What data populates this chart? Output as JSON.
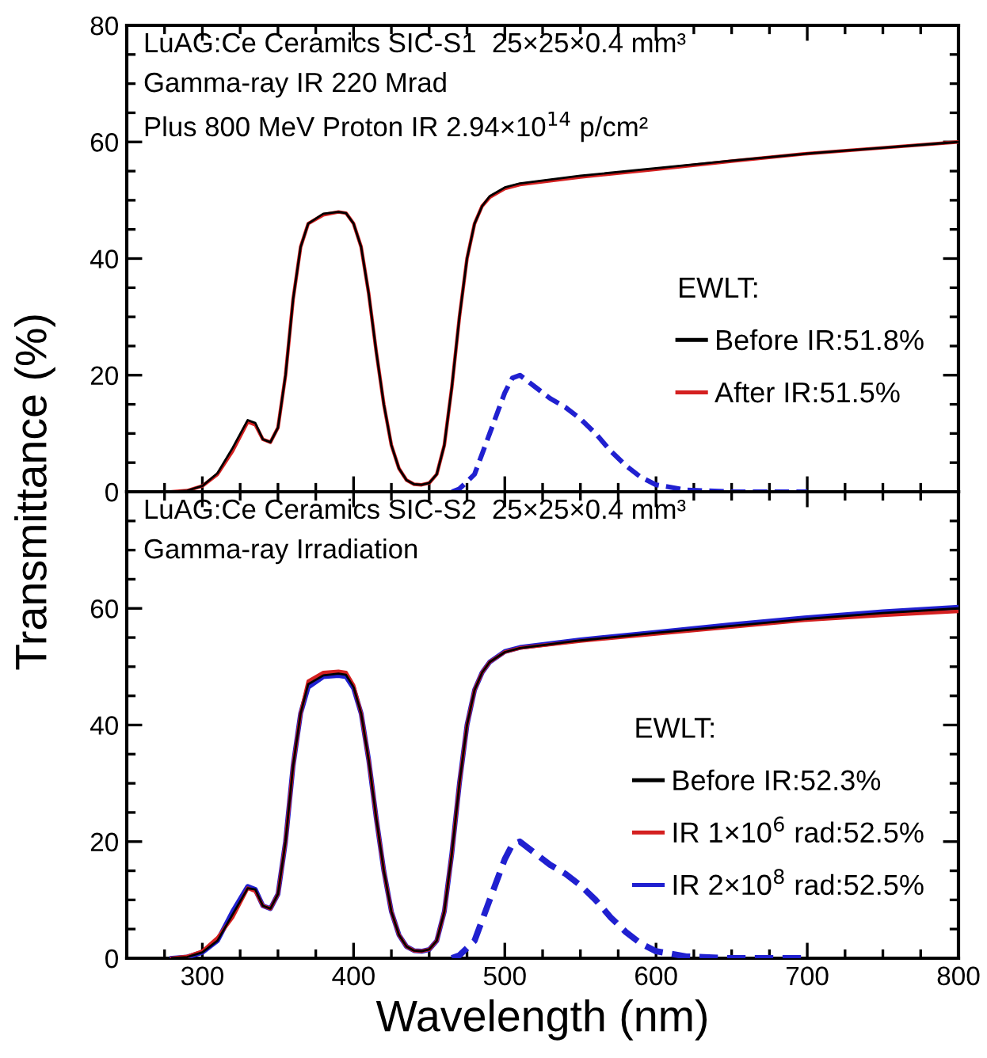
{
  "chart_data": [
    {
      "type": "line",
      "ylabel": "Transmittance (%)",
      "legend_title": "EWLT:",
      "legend": "right",
      "tick_labels": "y",
      "grid": false,
      "annotations": [
        "LuAG:Ce Ceramics SIC-S1  25×25×0.4 mm³",
        "Gamma-ray IR 220 Mrad",
        "Plus 800 MeV Proton IR 2.94×10$^{14}$ p/cm²"
      ],
      "x": [
        280,
        290,
        300,
        310,
        320,
        330,
        335,
        340,
        345,
        350,
        355,
        360,
        365,
        370,
        380,
        390,
        395,
        400,
        405,
        410,
        415,
        420,
        425,
        430,
        435,
        440,
        445,
        450,
        455,
        460,
        465,
        470,
        475,
        480,
        485,
        490,
        500,
        510,
        550,
        600,
        650,
        700,
        750,
        800
      ],
      "xlim": [
        250,
        800
      ],
      "xticks": [
        300,
        400,
        500,
        600,
        700,
        800
      ],
      "ylim": [
        0,
        80
      ],
      "yticks": [
        0,
        20,
        40,
        60,
        80
      ],
      "series": [
        {
          "name": "Before IR:51.8%",
          "color": "#000000",
          "values": [
            0,
            0.2,
            1,
            3.2,
            7.5,
            12.3,
            11.8,
            9,
            8.5,
            11,
            20,
            33,
            42,
            46,
            47.7,
            48,
            47.8,
            46,
            42,
            34,
            24,
            15,
            8,
            4,
            2,
            1.3,
            1.2,
            1.5,
            3,
            8,
            18,
            30,
            40,
            46,
            49,
            50.7,
            52.2,
            52.9,
            54.2,
            55.5,
            56.8,
            58,
            59,
            60
          ]
        },
        {
          "name": "After IR:51.5%",
          "color": "#d42020",
          "values": [
            0,
            0.2,
            1,
            3,
            7,
            12,
            11.5,
            9,
            8.5,
            11,
            20,
            33,
            42,
            46,
            47.5,
            48,
            47.8,
            46,
            42,
            34,
            24,
            15,
            8,
            4,
            2,
            1.3,
            1.2,
            1.5,
            3,
            8,
            18,
            30,
            40,
            46,
            49,
            50.5,
            52,
            52.7,
            54,
            55.3,
            56.7,
            58,
            59,
            60
          ]
        },
        {
          "color": "#2020d0",
          "line_style": "dashed",
          "x": [
            465,
            470,
            480,
            490,
            500,
            505,
            510,
            520,
            530,
            540,
            550,
            560,
            570,
            580,
            590,
            600,
            620,
            650,
            700
          ],
          "values": [
            0,
            0.5,
            3,
            10,
            17,
            19.5,
            20,
            18,
            16,
            14.5,
            12.5,
            10,
            7,
            4.5,
            2.5,
            1.2,
            0.3,
            0,
            0
          ]
        }
      ]
    },
    {
      "type": "line",
      "xlabel": "Wavelength (nm)",
      "legend_title": "EWLT:",
      "legend": "right",
      "grid": false,
      "annotations": [
        "LuAG:Ce Ceramics SIC-S2  25×25×0.4 mm³",
        "Gamma-ray Irradiation"
      ],
      "x": [
        280,
        290,
        300,
        310,
        320,
        330,
        335,
        340,
        345,
        350,
        355,
        360,
        365,
        370,
        380,
        390,
        395,
        400,
        405,
        410,
        415,
        420,
        425,
        430,
        435,
        440,
        445,
        450,
        455,
        460,
        465,
        470,
        475,
        480,
        485,
        490,
        500,
        510,
        550,
        600,
        650,
        700,
        750,
        800
      ],
      "xlim": [
        250,
        800
      ],
      "xticks": [
        300,
        400,
        500,
        600,
        700,
        800
      ],
      "ylim": [
        0,
        80
      ],
      "yticks": [
        0,
        20,
        40,
        60,
        {
          "value": 80,
          "label": null
        }
      ],
      "series": [
        {
          "name": "Before IR:52.3%",
          "color": "#000000",
          "values": [
            0,
            0.2,
            1,
            3,
            7.5,
            12,
            11.8,
            9,
            8.5,
            11,
            20,
            33,
            42,
            47,
            48.5,
            48.8,
            48.6,
            46.5,
            42,
            34,
            24,
            15,
            8,
            4,
            2,
            1.3,
            1.2,
            1.5,
            3,
            8,
            18,
            30,
            40,
            46,
            49,
            50.8,
            52.5,
            53.2,
            54.5,
            55.8,
            57,
            58.2,
            59.2,
            60
          ]
        },
        {
          "name": "IR 1×10$^{6}$ rad:52.5%",
          "color": "#d42020",
          "values": [
            0,
            0.3,
            1.2,
            3.5,
            7,
            12,
            11.5,
            9,
            8.5,
            11,
            20,
            33,
            42,
            47.5,
            49,
            49.2,
            49,
            46.8,
            42,
            34,
            24,
            15,
            8,
            4,
            2,
            1.3,
            1.2,
            1.5,
            3,
            8,
            18,
            30,
            40,
            46,
            49,
            50.8,
            52.5,
            53.2,
            54.4,
            55.6,
            56.8,
            58,
            58.8,
            59.5
          ]
        },
        {
          "name": "IR 2×10$^{8}$ rad:52.5%",
          "color": "#2020d0",
          "values": [
            0,
            0.2,
            1,
            3,
            8,
            12.3,
            11.8,
            9,
            8.5,
            11,
            20,
            33,
            42,
            46.5,
            48.3,
            48.5,
            48.3,
            46.3,
            42,
            34,
            24,
            15,
            8,
            4,
            2,
            1.3,
            1.2,
            1.5,
            3,
            8,
            18,
            30,
            40,
            46,
            49,
            50.8,
            52.6,
            53.3,
            54.6,
            55.9,
            57.2,
            58.4,
            59.4,
            60.2
          ]
        },
        {
          "color": "#2020d0",
          "line_style": "dashed",
          "x": [
            465,
            470,
            480,
            490,
            500,
            505,
            510,
            520,
            530,
            540,
            550,
            560,
            570,
            580,
            590,
            600,
            620,
            650,
            700
          ],
          "values": [
            0,
            0.5,
            3,
            10,
            17,
            19.5,
            20,
            18,
            16,
            14.5,
            12.5,
            10,
            7,
            4.5,
            2.5,
            1.2,
            0.3,
            0,
            0
          ]
        }
      ]
    }
  ]
}
